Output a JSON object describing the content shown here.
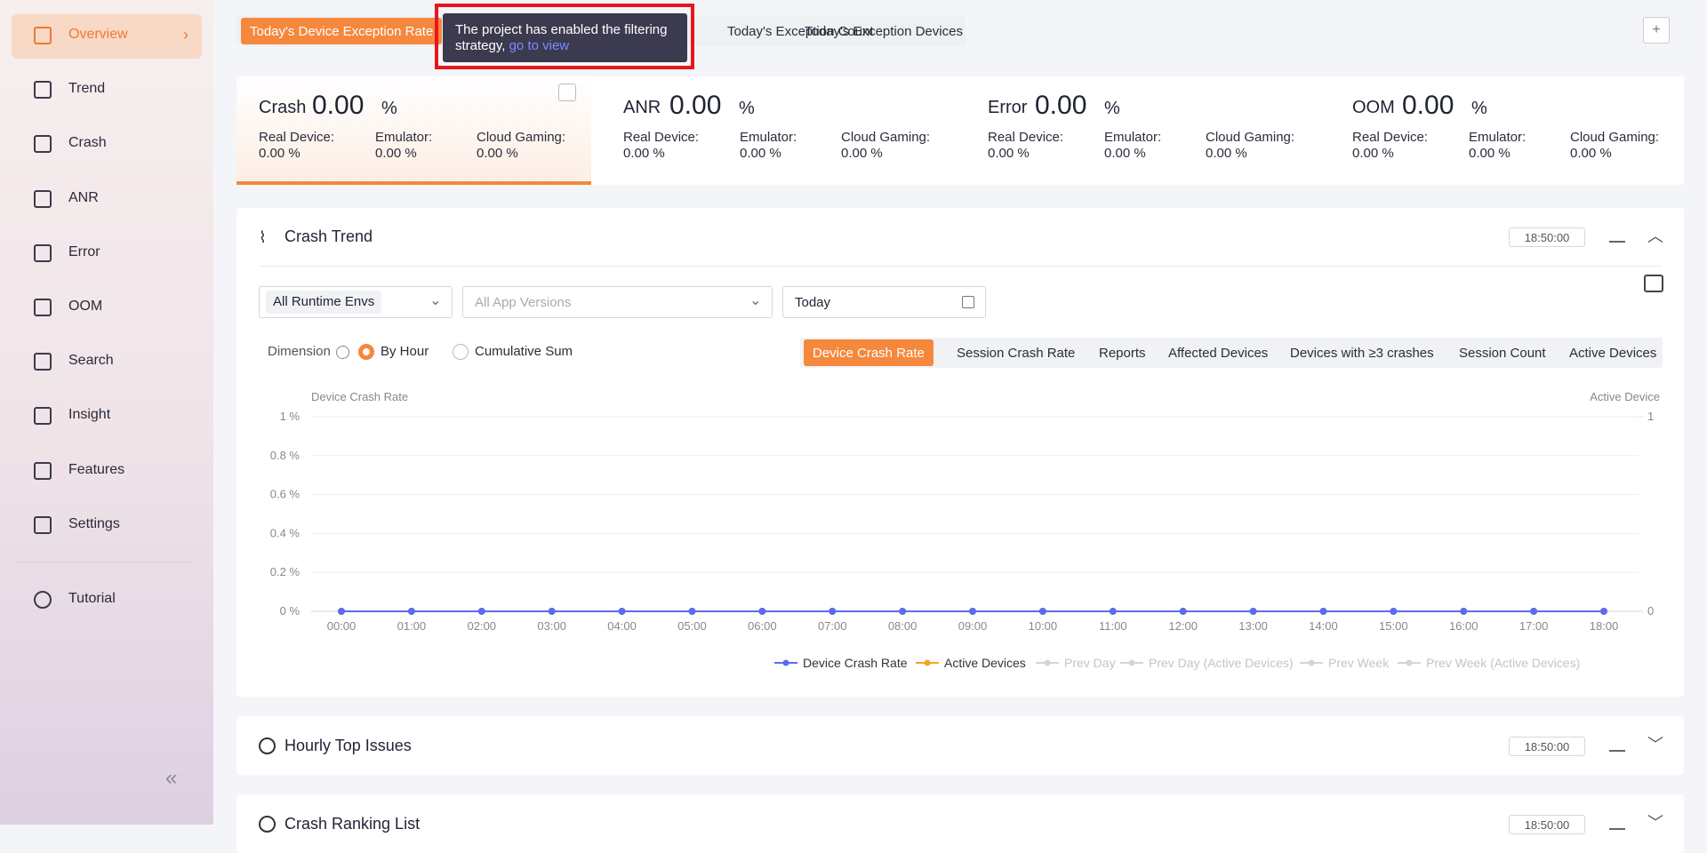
{
  "sidebar": {
    "items": [
      "Overview",
      "Trend",
      "Crash",
      "ANR",
      "Error",
      "OOM",
      "Search",
      "Insight",
      "Features",
      "Settings"
    ],
    "tutorial": "Tutorial"
  },
  "tabs": [
    "Today's Device Exception Rate",
    "Today's Exception Count",
    "Today's Exception Devices"
  ],
  "tooltip": {
    "text": "The project has enabled the filtering strategy,",
    "link": "go to view"
  },
  "stats": [
    {
      "name": "Crash",
      "value": "0.00",
      "unit": "%",
      "breakdown": [
        {
          "label": "Real Device:",
          "value": "0.00 %"
        },
        {
          "label": "Emulator:",
          "value": "0.00 %"
        },
        {
          "label": "Cloud Gaming:",
          "value": "0.00 %"
        }
      ]
    },
    {
      "name": "ANR",
      "value": "0.00",
      "unit": "%",
      "breakdown": [
        {
          "label": "Real Device:",
          "value": "0.00 %"
        },
        {
          "label": "Emulator:",
          "value": "0.00 %"
        },
        {
          "label": "Cloud Gaming:",
          "value": "0.00 %"
        }
      ]
    },
    {
      "name": "Error",
      "value": "0.00",
      "unit": "%",
      "breakdown": [
        {
          "label": "Real Device:",
          "value": "0.00 %"
        },
        {
          "label": "Emulator:",
          "value": "0.00 %"
        },
        {
          "label": "Cloud Gaming:",
          "value": "0.00 %"
        }
      ]
    },
    {
      "name": "OOM",
      "value": "0.00",
      "unit": "%",
      "breakdown": [
        {
          "label": "Real Device:",
          "value": "0.00 %"
        },
        {
          "label": "Emulator:",
          "value": "0.00 %"
        },
        {
          "label": "Cloud Gaming:",
          "value": "0.00 %"
        }
      ]
    }
  ],
  "crash_trend": {
    "title": "Crash Trend",
    "timestamp": "18:50:00",
    "filters": {
      "runtime": "All Runtime Envs",
      "versions": "All App Versions",
      "date": "Today"
    },
    "dimension": {
      "label": "Dimension",
      "options": [
        "By Hour",
        "Cumulative Sum"
      ]
    },
    "metrics": [
      "Device Crash Rate",
      "Session Crash Rate",
      "Reports",
      "Affected Devices",
      "Devices with ≥3 crashes",
      "Session Count",
      "Active Devices"
    ]
  },
  "chart_data": {
    "type": "line",
    "y_label": "Device Crash Rate",
    "y2_label": "Active Device",
    "categories": [
      "00:00",
      "01:00",
      "02:00",
      "03:00",
      "04:00",
      "05:00",
      "06:00",
      "07:00",
      "08:00",
      "09:00",
      "10:00",
      "11:00",
      "12:00",
      "13:00",
      "14:00",
      "15:00",
      "16:00",
      "17:00",
      "18:00"
    ],
    "ylim": [
      0,
      1
    ],
    "yticks": [
      {
        "value": 0,
        "label": "0 %"
      },
      {
        "value": 0.2,
        "label": "0.2 %"
      },
      {
        "value": 0.4,
        "label": "0.4 %"
      },
      {
        "value": 0.6,
        "label": "0.6 %"
      },
      {
        "value": 0.8,
        "label": "0.8 %"
      },
      {
        "value": 1,
        "label": "1 %"
      }
    ],
    "y2lim": [
      0,
      1
    ],
    "y2ticks": [
      0,
      1
    ],
    "grid": true,
    "series": [
      {
        "name": "Device Crash Rate",
        "color": "#5b6cf0",
        "values": [
          0,
          0,
          0,
          0,
          0,
          0,
          0,
          0,
          0,
          0,
          0,
          0,
          0,
          0,
          0,
          0,
          0,
          0,
          0
        ]
      },
      {
        "name": "Active Devices",
        "color": "#f5a623",
        "axis": "y2",
        "values": [
          0,
          0,
          0,
          0,
          0,
          0,
          0,
          0,
          0,
          0,
          0,
          0,
          0,
          0,
          0,
          0,
          0,
          0,
          0
        ]
      }
    ],
    "inactive_legend": [
      "Prev Day",
      "Prev Day (Active Devices)",
      "Prev Week",
      "Prev Week (Active Devices)"
    ]
  },
  "panels": [
    {
      "title": "Hourly Top Issues",
      "timestamp": "18:50:00"
    },
    {
      "title": "Crash Ranking List",
      "timestamp": "18:50:00"
    }
  ]
}
